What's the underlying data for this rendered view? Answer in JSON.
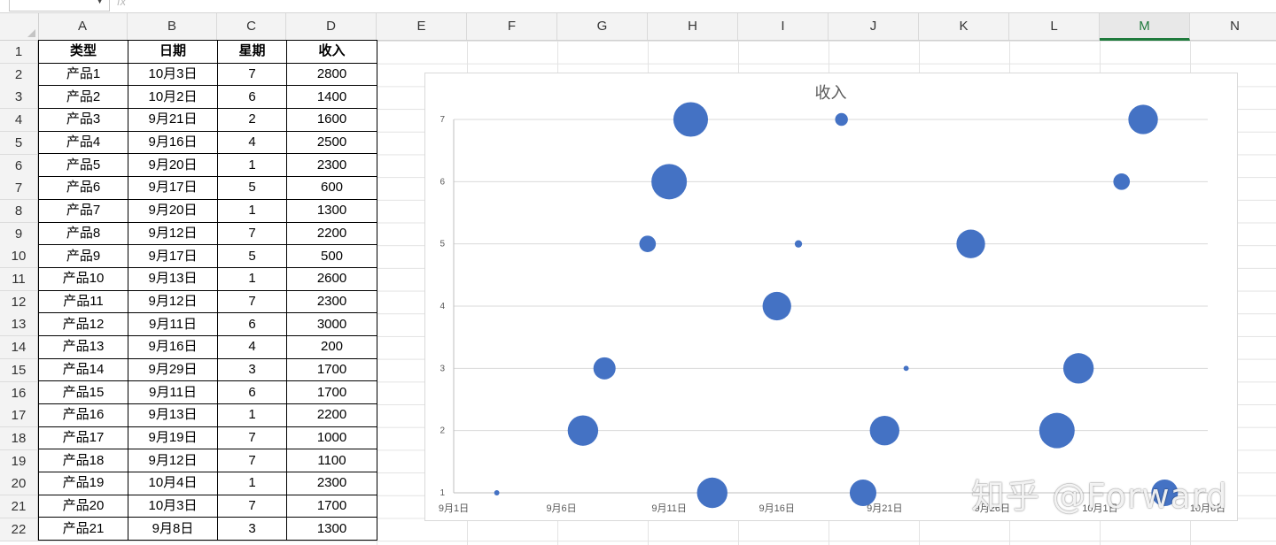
{
  "formula_bar": {
    "name_box_value": "",
    "fx_label": "fx"
  },
  "columns": [
    "A",
    "B",
    "C",
    "D",
    "E",
    "F",
    "G",
    "H",
    "I",
    "J",
    "K",
    "L",
    "M",
    "N"
  ],
  "selected_column": "M",
  "rows": [
    "1",
    "2",
    "3",
    "4",
    "5",
    "6",
    "7",
    "8",
    "9",
    "10",
    "11",
    "12",
    "13",
    "14",
    "15",
    "16",
    "17",
    "18",
    "19",
    "20",
    "21",
    "22"
  ],
  "table": {
    "headers": [
      "类型",
      "日期",
      "星期",
      "收入"
    ],
    "rows": [
      [
        "产品1",
        "10月3日",
        "7",
        "2800"
      ],
      [
        "产品2",
        "10月2日",
        "6",
        "1400"
      ],
      [
        "产品3",
        "9月21日",
        "2",
        "1600"
      ],
      [
        "产品4",
        "9月16日",
        "4",
        "2500"
      ],
      [
        "产品5",
        "9月20日",
        "1",
        "2300"
      ],
      [
        "产品6",
        "9月17日",
        "5",
        "600"
      ],
      [
        "产品7",
        "9月20日",
        "1",
        "1300"
      ],
      [
        "产品8",
        "9月12日",
        "7",
        "2200"
      ],
      [
        "产品9",
        "9月17日",
        "5",
        "500"
      ],
      [
        "产品10",
        "9月13日",
        "1",
        "2600"
      ],
      [
        "产品11",
        "9月12日",
        "7",
        "2300"
      ],
      [
        "产品12",
        "9月11日",
        "6",
        "3000"
      ],
      [
        "产品13",
        "9月16日",
        "4",
        "200"
      ],
      [
        "产品14",
        "9月29日",
        "3",
        "1700"
      ],
      [
        "产品15",
        "9月11日",
        "6",
        "1700"
      ],
      [
        "产品16",
        "9月13日",
        "1",
        "2200"
      ],
      [
        "产品17",
        "9月19日",
        "7",
        "1000"
      ],
      [
        "产品18",
        "9月12日",
        "7",
        "1100"
      ],
      [
        "产品19",
        "10月4日",
        "1",
        "2300"
      ],
      [
        "产品20",
        "10月3日",
        "7",
        "1700"
      ],
      [
        "产品21",
        "9月8日",
        "3",
        "1300"
      ]
    ]
  },
  "chart_data": {
    "type": "scatter",
    "subtype": "bubble",
    "title": "收入",
    "xlabel": "",
    "ylabel": "",
    "x_tick_labels": [
      "9月1日",
      "9月6日",
      "9月11日",
      "9月16日",
      "9月21日",
      "9月26日",
      "10月1日",
      "10月6日"
    ],
    "x_range_days": [
      0,
      35
    ],
    "ylim": [
      1,
      7
    ],
    "y_ticks": [
      1,
      2,
      3,
      4,
      5,
      6,
      7
    ],
    "grid": true,
    "legend": "none",
    "bubble_color": "#4472c4",
    "points": [
      {
        "x": "9月3日",
        "y": 1,
        "size": 50
      },
      {
        "x": "9月7日",
        "y": 2,
        "size": 1700
      },
      {
        "x": "9月8日",
        "y": 3,
        "size": 900
      },
      {
        "x": "9月10日",
        "y": 5,
        "size": 500
      },
      {
        "x": "9月11日",
        "y": 6,
        "size": 2300
      },
      {
        "x": "9月12日",
        "y": 7,
        "size": 2200
      },
      {
        "x": "9月13日",
        "y": 1,
        "size": 1700
      },
      {
        "x": "9月16日",
        "y": 4,
        "size": 1500
      },
      {
        "x": "9月17日",
        "y": 5,
        "size": 100
      },
      {
        "x": "9月19日",
        "y": 7,
        "size": 300
      },
      {
        "x": "9月20日",
        "y": 1,
        "size": 1300
      },
      {
        "x": "9月21日",
        "y": 2,
        "size": 1600
      },
      {
        "x": "9月22日",
        "y": 3,
        "size": 50
      },
      {
        "x": "9月25日",
        "y": 5,
        "size": 1500
      },
      {
        "x": "9月29日",
        "y": 2,
        "size": 2300
      },
      {
        "x": "9月30日",
        "y": 3,
        "size": 1700
      },
      {
        "x": "10月2日",
        "y": 6,
        "size": 500
      },
      {
        "x": "10月3日",
        "y": 7,
        "size": 1600
      },
      {
        "x": "10月4日",
        "y": 1,
        "size": 1300
      }
    ]
  },
  "watermark": "知乎 @Forward"
}
